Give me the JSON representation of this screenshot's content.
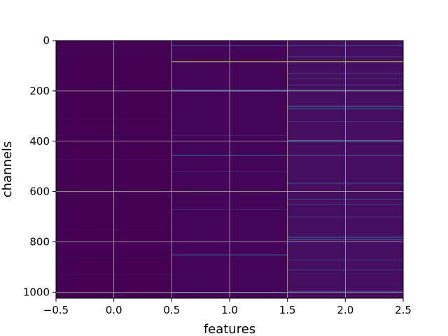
{
  "chart_data": {
    "type": "heatmap",
    "title": "",
    "xlabel": "features",
    "ylabel": "channels",
    "xlim": [
      -0.5,
      2.5
    ],
    "ylim": [
      1024,
      0
    ],
    "y_inverted": true,
    "xticks": [
      -0.5,
      0.0,
      0.5,
      1.0,
      1.5,
      2.0,
      2.5
    ],
    "xtick_labels": [
      "−0.5",
      "0.0",
      "0.5",
      "1.0",
      "1.5",
      "2.0",
      "2.5"
    ],
    "yticks": [
      0,
      200,
      400,
      600,
      800,
      1000
    ],
    "ytick_labels": [
      "0",
      "200",
      "400",
      "600",
      "800",
      "1000"
    ],
    "grid": true,
    "colormap": "viridis",
    "value_range": [
      0,
      1
    ],
    "background_color": "#440154",
    "columns": [
      {
        "feature": 0,
        "base_value": 0.0,
        "highlights": [
          {
            "channel": 50,
            "value": 0.03
          },
          {
            "channel": 180,
            "value": 0.03
          },
          {
            "channel": 310,
            "value": 0.03
          },
          {
            "channel": 375,
            "value": 0.04
          },
          {
            "channel": 470,
            "value": 0.03
          },
          {
            "channel": 620,
            "value": 0.03
          },
          {
            "channel": 750,
            "value": 0.03
          },
          {
            "channel": 860,
            "value": 0.04
          },
          {
            "channel": 930,
            "value": 0.03
          },
          {
            "channel": 1000,
            "value": 0.05
          }
        ]
      },
      {
        "feature": 1,
        "base_value": 0.01,
        "highlights": [
          {
            "channel": 18,
            "value": 0.3
          },
          {
            "channel": 82,
            "value": 0.95
          },
          {
            "channel": 195,
            "value": 0.35
          },
          {
            "channel": 200,
            "value": 0.2
          },
          {
            "channel": 375,
            "value": 0.1
          },
          {
            "channel": 455,
            "value": 0.4
          },
          {
            "channel": 520,
            "value": 0.15
          },
          {
            "channel": 670,
            "value": 0.1
          },
          {
            "channel": 850,
            "value": 0.3
          },
          {
            "channel": 1000,
            "value": 0.35
          }
        ]
      },
      {
        "feature": 2,
        "base_value": 0.05,
        "highlights": [
          {
            "channel": 18,
            "value": 0.3
          },
          {
            "channel": 62,
            "value": 0.2
          },
          {
            "channel": 82,
            "value": 0.95
          },
          {
            "channel": 130,
            "value": 0.2
          },
          {
            "channel": 150,
            "value": 0.15
          },
          {
            "channel": 175,
            "value": 0.2
          },
          {
            "channel": 195,
            "value": 0.25
          },
          {
            "channel": 260,
            "value": 0.45
          },
          {
            "channel": 270,
            "value": 0.35
          },
          {
            "channel": 320,
            "value": 0.15
          },
          {
            "channel": 395,
            "value": 0.35
          },
          {
            "channel": 455,
            "value": 0.3
          },
          {
            "channel": 565,
            "value": 0.35
          },
          {
            "channel": 630,
            "value": 0.25
          },
          {
            "channel": 650,
            "value": 0.2
          },
          {
            "channel": 700,
            "value": 0.15
          },
          {
            "channel": 780,
            "value": 0.4
          },
          {
            "channel": 790,
            "value": 0.3
          },
          {
            "channel": 870,
            "value": 0.2
          },
          {
            "channel": 910,
            "value": 0.2
          },
          {
            "channel": 995,
            "value": 0.3
          }
        ]
      }
    ]
  }
}
